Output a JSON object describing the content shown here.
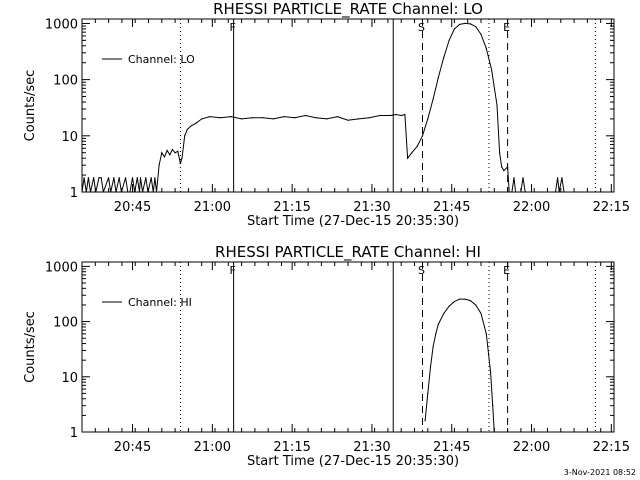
{
  "footer": {
    "timestamp": "3-Nov-2021 08:52"
  },
  "chart_data": [
    {
      "type": "line",
      "title": "RHESSI PARTICLE_RATE Channel: LO",
      "xlabel": "Start Time (27-Dec-15 20:35:30)",
      "ylabel": "Counts/sec",
      "yscale": "log",
      "ylim": [
        1,
        1200
      ],
      "xlim_minutes": [
        0,
        100
      ],
      "x_ticks": [
        "20:45",
        "21:00",
        "21:15",
        "21:30",
        "21:45",
        "22:00",
        "22:15"
      ],
      "y_ticks": [
        "1",
        "10",
        "100",
        "1000"
      ],
      "legend": {
        "entries": [
          "Channel: LO"
        ],
        "position": "upper-left"
      },
      "event_markers": [
        {
          "label": "F",
          "time_min": 28.5,
          "style": "solid"
        },
        {
          "label": "",
          "time_min": 58.5,
          "style": "solid"
        },
        {
          "label": "S",
          "time_min": 64.0,
          "style": "dashed"
        },
        {
          "label": "E",
          "time_min": 80.0,
          "style": "dashed"
        },
        {
          "label": "",
          "time_min": 18.5,
          "style": "dotted"
        },
        {
          "label": "",
          "time_min": 76.5,
          "style": "dotted"
        },
        {
          "label": "",
          "time_min": 96.5,
          "style": "dotted"
        }
      ],
      "series": [
        {
          "name": "Channel: LO",
          "points": [
            [
              0.0,
              1
            ],
            [
              0.4,
              1.8
            ],
            [
              0.8,
              1
            ],
            [
              1.2,
              1.8
            ],
            [
              1.6,
              1
            ],
            [
              2.2,
              1.8
            ],
            [
              2.6,
              1
            ],
            [
              3.2,
              1.8
            ],
            [
              3.6,
              1.8
            ],
            [
              4.0,
              1
            ],
            [
              5.0,
              1.8
            ],
            [
              5.4,
              1
            ],
            [
              6.0,
              1.8
            ],
            [
              6.4,
              1
            ],
            [
              7.0,
              1.8
            ],
            [
              7.4,
              1
            ],
            [
              8.2,
              1.8
            ],
            [
              8.6,
              1
            ],
            [
              9.0,
              1
            ],
            [
              9.5,
              1.8
            ],
            [
              9.9,
              1
            ],
            [
              10.4,
              1.8
            ],
            [
              10.8,
              1
            ],
            [
              11.0,
              1.8
            ],
            [
              11.4,
              1
            ],
            [
              12.0,
              1.8
            ],
            [
              12.4,
              1
            ],
            [
              13.0,
              1.8
            ],
            [
              13.4,
              1
            ],
            [
              13.7,
              1.8
            ],
            [
              14.0,
              1
            ],
            [
              14.5,
              3.0
            ],
            [
              15.0,
              5.0
            ],
            [
              15.5,
              4.2
            ],
            [
              16.0,
              5.5
            ],
            [
              16.5,
              4.6
            ],
            [
              17.0,
              5.7
            ],
            [
              17.5,
              5.0
            ],
            [
              18.0,
              5.3
            ],
            [
              18.5,
              3.2
            ],
            [
              18.8,
              4.0
            ],
            [
              19.3,
              10
            ],
            [
              19.8,
              13
            ],
            [
              20.5,
              15
            ],
            [
              21.5,
              17
            ],
            [
              22.5,
              20
            ],
            [
              24.0,
              22
            ],
            [
              26.0,
              21
            ],
            [
              28.0,
              22
            ],
            [
              30.0,
              20
            ],
            [
              32.0,
              21
            ],
            [
              34.0,
              21
            ],
            [
              36.0,
              20
            ],
            [
              38.0,
              22
            ],
            [
              40.0,
              21
            ],
            [
              42.0,
              23
            ],
            [
              44.0,
              21
            ],
            [
              46.0,
              20
            ],
            [
              48.0,
              22
            ],
            [
              50.0,
              19
            ],
            [
              52.0,
              20
            ],
            [
              54.0,
              21
            ],
            [
              56.0,
              23
            ],
            [
              58.0,
              23
            ],
            [
              59.0,
              24
            ],
            [
              60.0,
              23
            ],
            [
              60.7,
              24
            ],
            [
              61.2,
              4.0
            ],
            [
              62.0,
              5.0
            ],
            [
              63.0,
              6.5
            ],
            [
              64.0,
              10
            ],
            [
              65.0,
              20
            ],
            [
              66.0,
              45
            ],
            [
              67.0,
              110
            ],
            [
              68.0,
              250
            ],
            [
              69.0,
              500
            ],
            [
              70.0,
              800
            ],
            [
              71.0,
              960
            ],
            [
              72.0,
              1000
            ],
            [
              73.0,
              980
            ],
            [
              74.0,
              880
            ],
            [
              75.0,
              640
            ],
            [
              76.0,
              360
            ],
            [
              77.0,
              150
            ],
            [
              78.0,
              35
            ],
            [
              78.5,
              5.0
            ],
            [
              78.9,
              2.8
            ],
            [
              79.3,
              2.4
            ],
            [
              80.0,
              2.8
            ],
            [
              80.3,
              1
            ],
            [
              80.8,
              1
            ],
            [
              81.2,
              1.8
            ],
            [
              81.5,
              1
            ],
            [
              82.5,
              1
            ],
            [
              82.9,
              1.8
            ],
            [
              83.3,
              1
            ],
            [
              86.0,
              1
            ],
            [
              89.0,
              1
            ],
            [
              89.4,
              1.8
            ],
            [
              89.7,
              1
            ],
            [
              90.2,
              1.8
            ],
            [
              90.6,
              1
            ],
            [
              93.0,
              1
            ]
          ]
        }
      ]
    },
    {
      "type": "line",
      "title": "RHESSI PARTICLE_RATE Channel: HI",
      "xlabel": "Start Time (27-Dec-15 20:35:30)",
      "ylabel": "Counts/sec",
      "yscale": "log",
      "ylim": [
        1,
        1200
      ],
      "xlim_minutes": [
        0,
        100
      ],
      "x_ticks": [
        "20:45",
        "21:00",
        "21:15",
        "21:30",
        "21:45",
        "22:00",
        "22:15"
      ],
      "y_ticks": [
        "1",
        "10",
        "100",
        "1000"
      ],
      "legend": {
        "entries": [
          "Channel: HI"
        ],
        "position": "upper-left"
      },
      "event_markers": [
        {
          "label": "F",
          "time_min": 28.5,
          "style": "solid"
        },
        {
          "label": "",
          "time_min": 58.5,
          "style": "solid"
        },
        {
          "label": "S",
          "time_min": 64.0,
          "style": "dashed"
        },
        {
          "label": "E",
          "time_min": 80.0,
          "style": "dashed"
        },
        {
          "label": "",
          "time_min": 18.5,
          "style": "dotted"
        },
        {
          "label": "",
          "time_min": 76.5,
          "style": "dotted"
        },
        {
          "label": "",
          "time_min": 96.5,
          "style": "dotted"
        }
      ],
      "series": [
        {
          "name": "Channel: HI",
          "points": [
            [
              64.5,
              1.6
            ],
            [
              65.0,
              5
            ],
            [
              65.5,
              15
            ],
            [
              66.0,
              35
            ],
            [
              66.5,
              60
            ],
            [
              67.0,
              90
            ],
            [
              68.0,
              140
            ],
            [
              69.0,
              190
            ],
            [
              70.0,
              230
            ],
            [
              71.0,
              255
            ],
            [
              72.0,
              255
            ],
            [
              73.0,
              240
            ],
            [
              74.0,
              200
            ],
            [
              75.0,
              140
            ],
            [
              76.0,
              60
            ],
            [
              76.8,
              12
            ],
            [
              77.2,
              3
            ],
            [
              77.5,
              1
            ]
          ]
        }
      ]
    }
  ]
}
